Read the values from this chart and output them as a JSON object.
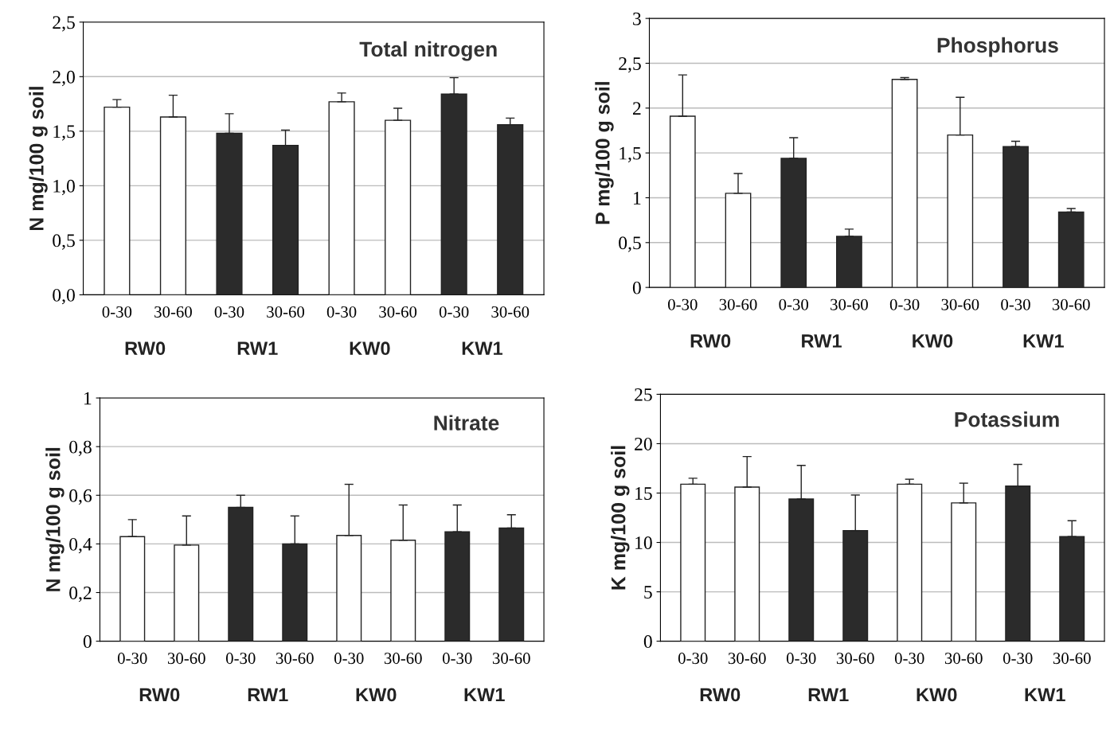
{
  "chart_data": [
    {
      "type": "bar",
      "title": "Total nitrogen",
      "ylabel": "N mg/100 g soil",
      "categories": [
        "0-30",
        "30-60",
        "0-30",
        "30-60",
        "0-30",
        "30-60",
        "0-30",
        "30-60"
      ],
      "values": [
        1.72,
        1.63,
        1.48,
        1.37,
        1.77,
        1.6,
        1.84,
        1.56
      ],
      "errors": [
        [
          1.72,
          1.79
        ],
        [
          1.63,
          1.83
        ],
        [
          1.48,
          1.66
        ],
        [
          1.37,
          1.51
        ],
        [
          1.77,
          1.85
        ],
        [
          1.6,
          1.71
        ],
        [
          1.84,
          1.99
        ],
        [
          1.56,
          1.62
        ]
      ],
      "colors": [
        "#ffffff",
        "#ffffff",
        "#2b2b2b",
        "#2b2b2b",
        "#ffffff",
        "#ffffff",
        "#2b2b2b",
        "#2b2b2b"
      ],
      "ylim": [
        0,
        2.5
      ],
      "yticks": [
        {
          "value": 0,
          "label": "0,0"
        },
        {
          "value": 0.5,
          "label": "0,5"
        },
        {
          "value": 1,
          "label": "1,0"
        },
        {
          "value": 1.5,
          "label": "1,5"
        },
        {
          "value": 2,
          "label": "2,0"
        },
        {
          "value": 2.5,
          "label": "2,5"
        }
      ],
      "grid": "y",
      "annotations": [
        "RW0",
        "RW1",
        "KW0",
        "KW1"
      ]
    },
    {
      "type": "bar",
      "title": "Phosphorus",
      "ylabel": "P mg/100 g soil",
      "categories": [
        "0-30",
        "30-60",
        "0-30",
        "30-60",
        "0-30",
        "30-60",
        "0-30",
        "30-60"
      ],
      "values": [
        1.91,
        1.05,
        1.44,
        0.57,
        2.32,
        1.7,
        1.57,
        0.84
      ],
      "errors": [
        [
          1.91,
          2.37
        ],
        [
          1.05,
          1.27
        ],
        [
          1.44,
          1.67
        ],
        [
          0.57,
          0.65
        ],
        [
          2.32,
          2.34
        ],
        [
          1.7,
          2.12
        ],
        [
          1.57,
          1.63
        ],
        [
          0.84,
          0.88
        ]
      ],
      "colors": [
        "#ffffff",
        "#ffffff",
        "#2b2b2b",
        "#2b2b2b",
        "#ffffff",
        "#ffffff",
        "#2b2b2b",
        "#2b2b2b"
      ],
      "ylim": [
        0,
        3
      ],
      "yticks": [
        0,
        {
          "value": 0.5,
          "label": "0,5"
        },
        1,
        {
          "value": 1.5,
          "label": "1,5"
        },
        2,
        {
          "value": 2.5,
          "label": "2,5"
        },
        3
      ],
      "grid": "y",
      "annotations": [
        "RW0",
        "RW1",
        "KW0",
        "KW1"
      ]
    },
    {
      "type": "bar",
      "title": "Nitrate",
      "ylabel": "N mg/100 g soil",
      "categories": [
        "0-30",
        "30-60",
        "0-30",
        "30-60",
        "0-30",
        "30-60",
        "0-30",
        "30-60"
      ],
      "values": [
        0.43,
        0.395,
        0.55,
        0.4,
        0.435,
        0.415,
        0.45,
        0.465
      ],
      "errors": [
        [
          0.43,
          0.5
        ],
        [
          0.395,
          0.515
        ],
        [
          0.55,
          0.6
        ],
        [
          0.4,
          0.515
        ],
        [
          0.435,
          0.645
        ],
        [
          0.415,
          0.56
        ],
        [
          0.45,
          0.56
        ],
        [
          0.465,
          0.52
        ]
      ],
      "colors": [
        "#ffffff",
        "#ffffff",
        "#2b2b2b",
        "#2b2b2b",
        "#ffffff",
        "#ffffff",
        "#2b2b2b",
        "#2b2b2b"
      ],
      "ylim": [
        0,
        1
      ],
      "yticks": [
        0,
        {
          "value": 0.2,
          "label": "0,2"
        },
        {
          "value": 0.4,
          "label": "0,4"
        },
        {
          "value": 0.6,
          "label": "0,6"
        },
        {
          "value": 0.8,
          "label": "0,8"
        },
        1
      ],
      "grid": "y",
      "annotations": [
        "RW0",
        "RW1",
        "KW0",
        "KW1"
      ]
    },
    {
      "type": "bar",
      "title": "Potassium",
      "ylabel": "K mg/100 g soil",
      "categories": [
        "0-30",
        "30-60",
        "0-30",
        "30-60",
        "0-30",
        "30-60",
        "0-30",
        "30-60"
      ],
      "values": [
        15.9,
        15.6,
        14.4,
        11.2,
        15.9,
        14.0,
        15.7,
        10.6
      ],
      "errors": [
        [
          15.9,
          16.5
        ],
        [
          15.6,
          18.7
        ],
        [
          14.4,
          17.8
        ],
        [
          11.2,
          14.8
        ],
        [
          15.9,
          16.4
        ],
        [
          14.0,
          16.0
        ],
        [
          15.7,
          17.9
        ],
        [
          10.6,
          12.2
        ]
      ],
      "colors": [
        "#ffffff",
        "#ffffff",
        "#2b2b2b",
        "#2b2b2b",
        "#ffffff",
        "#ffffff",
        "#2b2b2b",
        "#2b2b2b"
      ],
      "ylim": [
        0,
        25
      ],
      "yticks": [
        0,
        5,
        10,
        15,
        20,
        25
      ],
      "grid": "y",
      "annotations": [
        "RW0",
        "RW1",
        "KW0",
        "KW1"
      ]
    }
  ]
}
